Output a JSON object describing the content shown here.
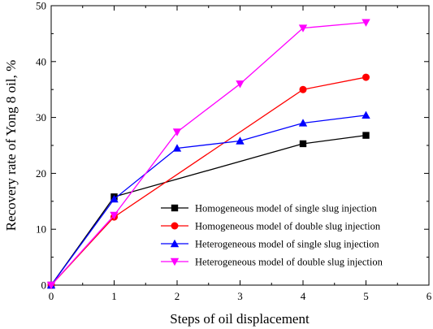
{
  "chart_data": {
    "type": "line",
    "title": "",
    "xlabel": "Steps of oil displacement",
    "ylabel": "Recovery rate of Yong 8 oil, %",
    "xlim": [
      0,
      6
    ],
    "ylim": [
      0,
      50
    ],
    "x_ticks": [
      "0",
      "1",
      "2",
      "3",
      "4",
      "5",
      "6"
    ],
    "y_ticks": [
      "0",
      "10",
      "20",
      "30",
      "40",
      "50"
    ],
    "grid": false,
    "legend_position": "right",
    "series": [
      {
        "name": "Homogeneous model of single slug injection",
        "color": "#000000",
        "marker": "square",
        "x": [
          0,
          1,
          4,
          5
        ],
        "y": [
          0,
          15.8,
          25.3,
          26.8
        ]
      },
      {
        "name": "Homogeneous model of double slug injection",
        "color": "#ff0000",
        "marker": "circle",
        "x": [
          0,
          1,
          4,
          5
        ],
        "y": [
          0,
          12.2,
          35.0,
          37.2
        ]
      },
      {
        "name": "Heterogeneous model of single slug injection",
        "color": "#0000ff",
        "marker": "triangle-up",
        "x": [
          0,
          1,
          2,
          3,
          4,
          5
        ],
        "y": [
          0,
          15.4,
          24.5,
          25.8,
          29.0,
          30.4
        ]
      },
      {
        "name": "Heterogeneous model of double slug injection",
        "color": "#ff00ff",
        "marker": "triangle-down",
        "x": [
          0,
          1,
          2,
          3,
          4,
          5
        ],
        "y": [
          0,
          12.5,
          27.4,
          36.0,
          46.0,
          47.0
        ]
      }
    ]
  }
}
